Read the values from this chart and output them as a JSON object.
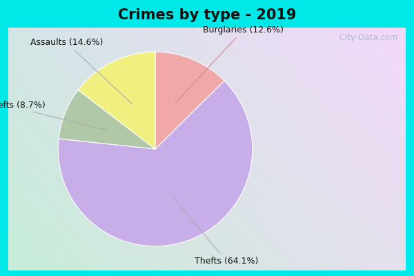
{
  "title": "Crimes by type - 2019",
  "slices": [
    {
      "label": "Thefts",
      "pct": 64.1,
      "color": "#c8aee8"
    },
    {
      "label": "Burglaries",
      "pct": 12.6,
      "color": "#f0a8a8"
    },
    {
      "label": "Assaults",
      "pct": 14.6,
      "color": "#f0f080"
    },
    {
      "label": "Auto thefts",
      "pct": 8.7,
      "color": "#b0c8a8"
    }
  ],
  "bg_outer": "#00e8e8",
  "title_fontsize": 15,
  "title_color": "#111111",
  "label_fontsize": 9,
  "watermark": " City-Data.com",
  "watermark_color": "#a0b8c8"
}
